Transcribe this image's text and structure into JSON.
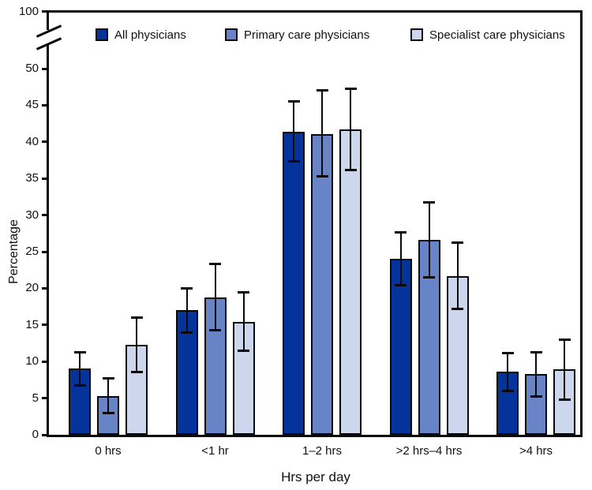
{
  "chart_data": {
    "type": "bar",
    "title": "",
    "xlabel": "Hrs per day",
    "ylabel": "Percentage",
    "categories": [
      "0 hrs",
      "<1 hr",
      "1–2 hrs",
      ">2 hrs–4 hrs",
      ">4 hrs"
    ],
    "series": [
      {
        "name": "All physicians",
        "color": "#04339B",
        "values": [
          9.0,
          17.0,
          41.4,
          24.0,
          8.6
        ],
        "ci_low": [
          6.7,
          14.0,
          37.3,
          20.4,
          6.0
        ],
        "ci_high": [
          11.3,
          20.0,
          45.5,
          27.6,
          11.2
        ]
      },
      {
        "name": "Primary care physicians",
        "color": "#6884C6",
        "values": [
          5.3,
          18.7,
          41.1,
          26.6,
          8.3
        ],
        "ci_low": [
          3.0,
          14.3,
          35.3,
          21.5,
          5.2
        ],
        "ci_high": [
          7.7,
          23.3,
          47.0,
          31.7,
          11.3
        ]
      },
      {
        "name": "Specialist care physicians",
        "color": "#CCD7EE",
        "values": [
          12.3,
          15.4,
          41.7,
          21.7,
          8.9
        ],
        "ci_low": [
          8.6,
          11.5,
          36.2,
          17.2,
          4.8
        ],
        "ci_high": [
          16.0,
          19.4,
          47.2,
          26.2,
          13.0
        ]
      }
    ],
    "y_axis": {
      "ticks": [
        0,
        5,
        10,
        15,
        20,
        25,
        30,
        35,
        40,
        45,
        50
      ],
      "break_top_tick": 100,
      "axis_break": true,
      "ylim": [
        0,
        50
      ]
    },
    "error_bars": true,
    "grid": false,
    "legend_position": "top-inside",
    "axis_color": "#0a0a0a",
    "text_color": "#111111"
  }
}
